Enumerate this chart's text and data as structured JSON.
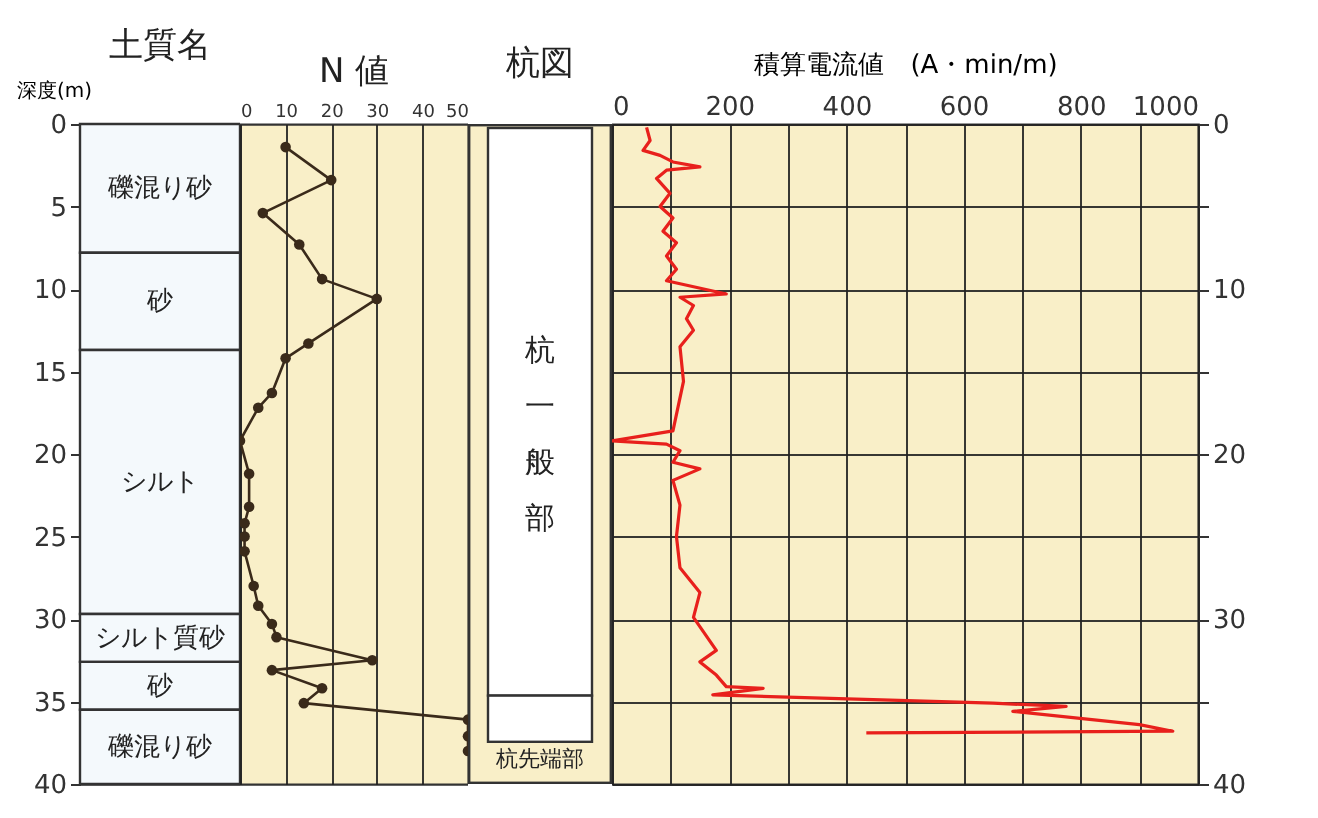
{
  "chart_data": [
    {
      "type": "bar",
      "stacked": true,
      "title": "土質名",
      "ylabel": "深度(m)",
      "categories": [
        null
      ],
      "ylim": [
        40,
        0
      ],
      "yticks": [
        0,
        5,
        10,
        15,
        20,
        25,
        30,
        35,
        40
      ],
      "tick_labels": "y",
      "legend": "left",
      "series": [
        {
          "name": "礫混り砂",
          "color": "#f4f9fc",
          "values": [
            7.8
          ]
        },
        {
          "name": "砂",
          "color": "#f4f9fc",
          "values": [
            5.9
          ]
        },
        {
          "name": "シルト",
          "color": "#f4f9fc",
          "values": [
            16.0
          ]
        },
        {
          "name": "シルト質砂",
          "color": "#f4f9fc",
          "values": [
            2.9
          ]
        },
        {
          "name": "砂",
          "color": "#f4f9fc",
          "values": [
            2.9
          ]
        },
        {
          "name": "礫混り砂",
          "color": "#f4f9fc",
          "values": [
            4.5
          ]
        }
      ]
    },
    {
      "type": "line",
      "title": "N 値",
      "xlim": [
        0,
        50
      ],
      "xticks": [
        0,
        10,
        20,
        30,
        40,
        50
      ],
      "ylim": [
        40,
        0
      ],
      "tick_labels": "x",
      "grid": "x",
      "marker": "circle",
      "series": [
        {
          "color": "#3a2a1a",
          "x": [
            10,
            20,
            5,
            13,
            18,
            30,
            15,
            10,
            7,
            4,
            0,
            2,
            2,
            1,
            1,
            1,
            3,
            4,
            7,
            8,
            29,
            7,
            18,
            14,
            50,
            50,
            50
          ],
          "values": [
            1.4,
            3.4,
            5.4,
            7.3,
            9.4,
            10.6,
            13.3,
            14.2,
            16.3,
            17.2,
            19.2,
            21.2,
            23.2,
            24.2,
            25,
            25.9,
            28,
            29.2,
            30.3,
            31.1,
            32.5,
            33.1,
            34.2,
            35.1,
            36.1,
            37.1,
            38
          ]
        }
      ]
    },
    {
      "type": "other",
      "title": "杭図",
      "annotations": [
        "杭一般部",
        "杭先端部"
      ]
    },
    {
      "type": "line",
      "xlabel": "積算電流値　(A・min/m)",
      "xlim": [
        0,
        1000
      ],
      "xticks": [
        0,
        {
          "value": 100,
          "label": null
        },
        200,
        {
          "value": 300,
          "label": null
        },
        400,
        {
          "value": 500,
          "label": null
        },
        600,
        {
          "value": 700,
          "label": null
        },
        800,
        {
          "value": 900,
          "label": null
        },
        1000
      ],
      "y2lim": [
        40,
        0
      ],
      "y2ticks": [
        0,
        {
          "value": 5,
          "label": null
        },
        10,
        {
          "value": 15,
          "label": null
        },
        20,
        {
          "value": 25,
          "label": null
        },
        30,
        {
          "value": 35,
          "label": null
        },
        40
      ],
      "grid": true,
      "series": [
        {
          "color": "#e8201c",
          "axis": "y2",
          "x": [
            59,
            65,
            53,
            82,
            104,
            150,
            93,
            76,
            99,
            82,
            104,
            87,
            110,
            93,
            110,
            93,
            195,
            116,
            139,
            127,
            139,
            116,
            122,
            104,
            0,
            93,
            116,
            104,
            150,
            104,
            116,
            110,
            116,
            150,
            139,
            178,
            150,
            178,
            195,
            258,
            172,
            650,
            775,
            684,
            900,
            957,
            434
          ],
          "values": [
            0.2,
            1.0,
            1.6,
            1.9,
            2.3,
            2.6,
            2.8,
            3.3,
            4.2,
            5.0,
            5.7,
            6.5,
            7.2,
            8.0,
            8.8,
            9.5,
            10.3,
            10.5,
            11.0,
            11.8,
            12.5,
            13.5,
            15.6,
            18.6,
            19.2,
            19.4,
            19.8,
            20.5,
            20.9,
            21.6,
            23.1,
            25.0,
            26.9,
            28.4,
            29.9,
            31.9,
            32.6,
            33.4,
            34.1,
            34.2,
            34.6,
            35.1,
            35.3,
            35.6,
            36.4,
            36.8,
            36.9
          ]
        }
      ]
    }
  ]
}
